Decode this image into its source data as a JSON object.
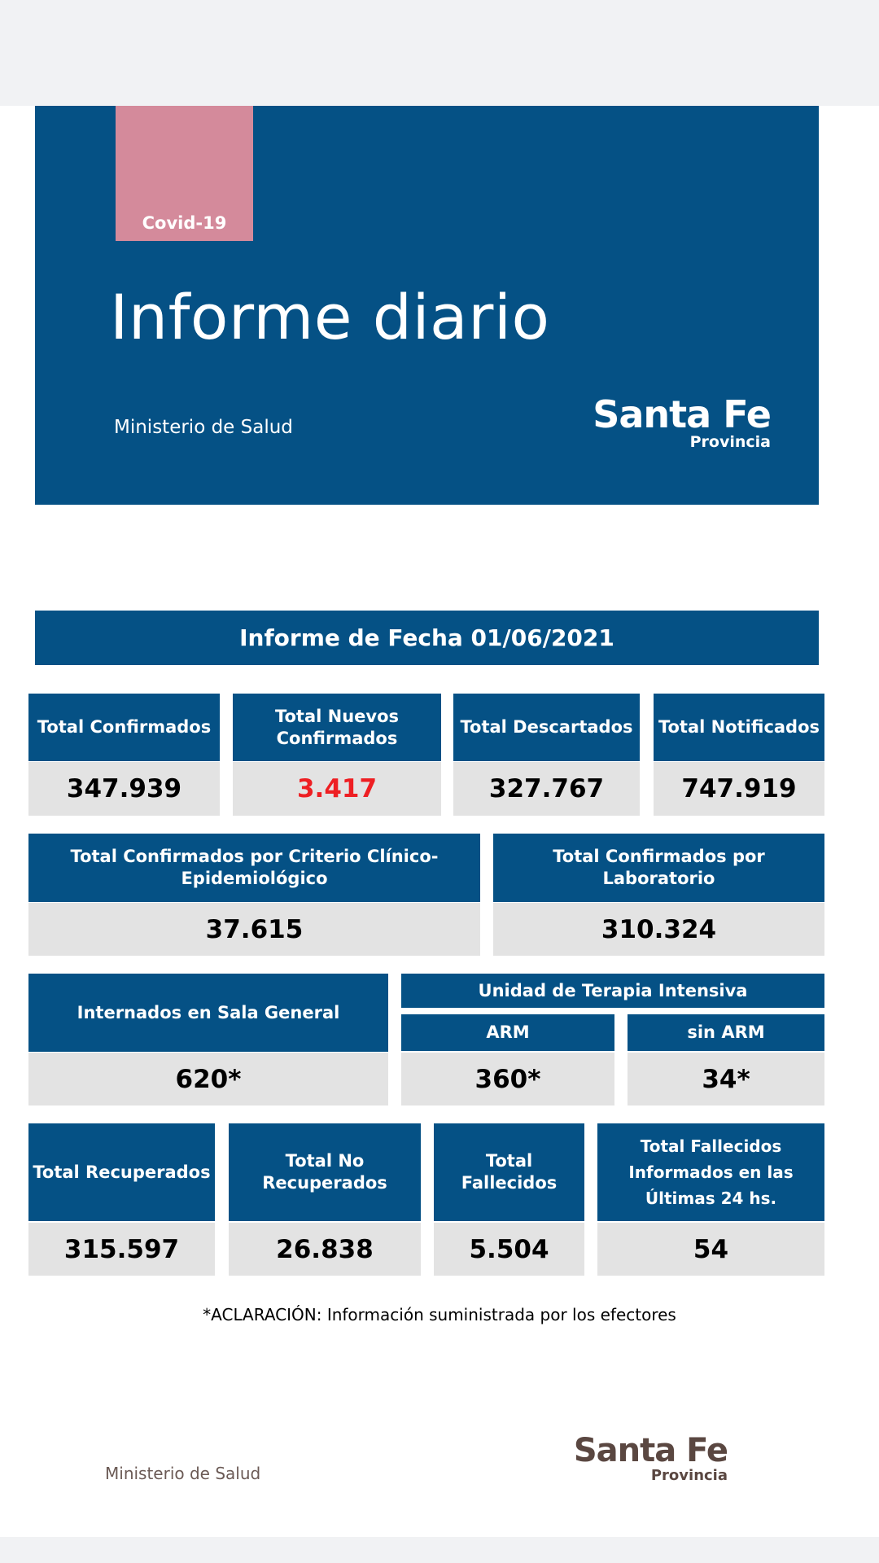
{
  "cover": {
    "tag": "Covid-19",
    "title": "Informe diario",
    "ministry": "Ministerio de Salud",
    "logo_main": "Santa Fe",
    "logo_sub": "Provincia"
  },
  "report_date": "Informe de Fecha 01/06/2021",
  "row1": [
    {
      "label": "Total Confirmados",
      "value": "347.939"
    },
    {
      "label": "Total Nuevos Confirmados",
      "value": "3.417"
    },
    {
      "label": "Total Descartados",
      "value": "327.767"
    },
    {
      "label": "Total Notificados",
      "value": "747.919"
    }
  ],
  "row2": [
    {
      "label": "Total Confirmados por Criterio Clínico-Epidemiológico",
      "value": "37.615"
    },
    {
      "label": "Total Confirmados por Laboratorio",
      "value": "310.324"
    }
  ],
  "row3": {
    "sala": {
      "label": "Internados en Sala General",
      "value": "620*"
    },
    "uti_title": "Unidad de Terapia Intensiva",
    "arm": {
      "label": "ARM",
      "value": "360*"
    },
    "sin_arm": {
      "label": "sin ARM",
      "value": "34*"
    }
  },
  "row4": [
    {
      "label": "Total Recuperados",
      "value": "315.597"
    },
    {
      "label": "Total No Recuperados",
      "value": "26.838"
    },
    {
      "label": "Total Fallecidos",
      "value": "5.504"
    },
    {
      "label": "Total Fallecidos Informados en las Últimas 24 hs.",
      "value": "54"
    }
  ],
  "note": "*ACLARACIÓN: Información suministrada por los efectores",
  "footer": {
    "ministry": "Ministerio de Salud",
    "logo_main": "Santa Fe",
    "logo_sub": "Provincia"
  },
  "colors": {
    "primary": "#055185",
    "accent_pink": "#d48a9b",
    "value_bg": "#e3e3e3",
    "highlight_red": "#ee1f23"
  }
}
